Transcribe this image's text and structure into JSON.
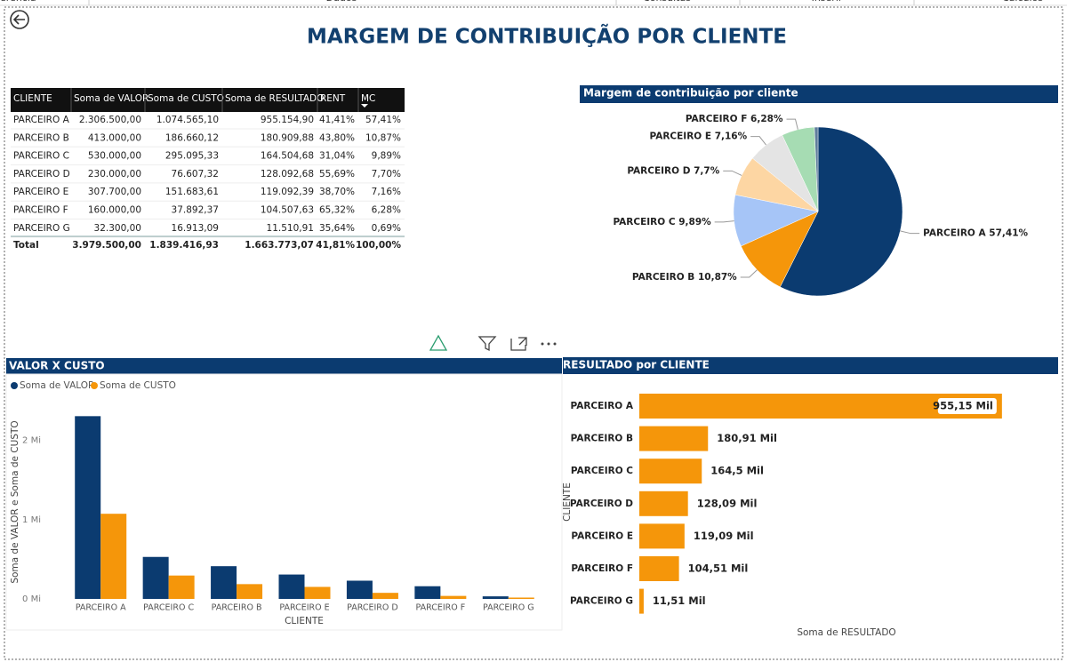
{
  "header": {
    "title": "MARGEM DE CONTRIBUIÇÃO POR CLIENTE",
    "tabs": [
      "erência",
      "Dados",
      "Consultas",
      "Inserir",
      "Cálculos"
    ]
  },
  "table": {
    "columns": [
      "CLIENTE",
      "Soma de VALOR",
      "Soma de CUSTO",
      "Soma de RESULTADO",
      "RENT",
      "MC"
    ],
    "rows": [
      [
        "PARCEIRO A",
        "2.306.500,00",
        "1.074.565,10",
        "955.154,90",
        "41,41%",
        "57,41%"
      ],
      [
        "PARCEIRO B",
        "413.000,00",
        "186.660,12",
        "180.909,88",
        "43,80%",
        "10,87%"
      ],
      [
        "PARCEIRO C",
        "530.000,00",
        "295.095,33",
        "164.504,68",
        "31,04%",
        "9,89%"
      ],
      [
        "PARCEIRO D",
        "230.000,00",
        "76.607,32",
        "128.092,68",
        "55,69%",
        "7,70%"
      ],
      [
        "PARCEIRO E",
        "307.700,00",
        "151.683,61",
        "119.092,39",
        "38,70%",
        "7,16%"
      ],
      [
        "PARCEIRO F",
        "160.000,00",
        "37.892,37",
        "104.507,63",
        "65,32%",
        "6,28%"
      ],
      [
        "PARCEIRO G",
        "32.300,00",
        "16.913,09",
        "11.510,91",
        "35,64%",
        "0,69%"
      ]
    ],
    "total": [
      "Total",
      "3.979.500,00",
      "1.839.416,93",
      "1.663.773,07",
      "41,81%",
      "100,00%"
    ]
  },
  "chart_data": [
    {
      "type": "pie",
      "title": "Margem de contribuição por cliente",
      "categories": [
        "PARCEIRO A",
        "PARCEIRO B",
        "PARCEIRO C",
        "PARCEIRO D",
        "PARCEIRO E",
        "PARCEIRO F",
        null
      ],
      "values": [
        57.41,
        10.87,
        9.89,
        7.7,
        7.16,
        6.28,
        0.69
      ],
      "value_labels": [
        "57,41%",
        "10,87%",
        "9,89%",
        "7,7%",
        "7,16%",
        "6,28%",
        null
      ],
      "colors": [
        "#0b3b70",
        "#f5960a",
        "#a6c5f7",
        "#fdd6a3",
        "#e4e4e4",
        "#a6dcb3",
        "#5f7d9c"
      ]
    },
    {
      "type": "column",
      "title": "VALOR X CUSTO",
      "x_label": "CLIENTE",
      "y_label": "Soma de VALOR e Soma de CUSTO",
      "categories": [
        "PARCEIRO A",
        "PARCEIRO C",
        "PARCEIRO B",
        "PARCEIRO E",
        "PARCEIRO D",
        "PARCEIRO F",
        "PARCEIRO G"
      ],
      "series": [
        {
          "name": "Soma de VALOR",
          "color": "#0b3b70",
          "values": [
            2306500,
            530000,
            413000,
            307700,
            230000,
            160000,
            32300
          ]
        },
        {
          "name": "Soma de CUSTO",
          "color": "#f5960a",
          "values": [
            1074565.1,
            295095.33,
            186660.12,
            151683.61,
            76607.32,
            37892.37,
            16913.09
          ]
        }
      ],
      "ylim": [
        0,
        2400000
      ],
      "yticks": [
        {
          "value": 0,
          "label": "0 Mi"
        },
        {
          "value": 1000000,
          "label": "1 Mi"
        },
        {
          "value": 2000000,
          "label": "2 Mi"
        }
      ],
      "legend": "top-left"
    },
    {
      "type": "hbar",
      "title": "RESULTADO por CLIENTE",
      "x_label": "Soma de RESULTADO",
      "y_label": "CLIENTE",
      "categories": [
        "PARCEIRO A",
        "PARCEIRO B",
        "PARCEIRO C",
        "PARCEIRO D",
        "PARCEIRO E",
        "PARCEIRO F",
        "PARCEIRO G"
      ],
      "values": [
        955154.9,
        180909.88,
        164504.68,
        128092.68,
        119092.39,
        104507.63,
        11510.91
      ],
      "value_labels": [
        "955,15 Mil",
        "180,91 Mil",
        "164,5 Mil",
        "128,09 Mil",
        "119,09 Mil",
        "104,51 Mil",
        "11,51 Mil"
      ],
      "color": "#f5960a",
      "xlim": [
        0,
        1000000
      ]
    }
  ]
}
